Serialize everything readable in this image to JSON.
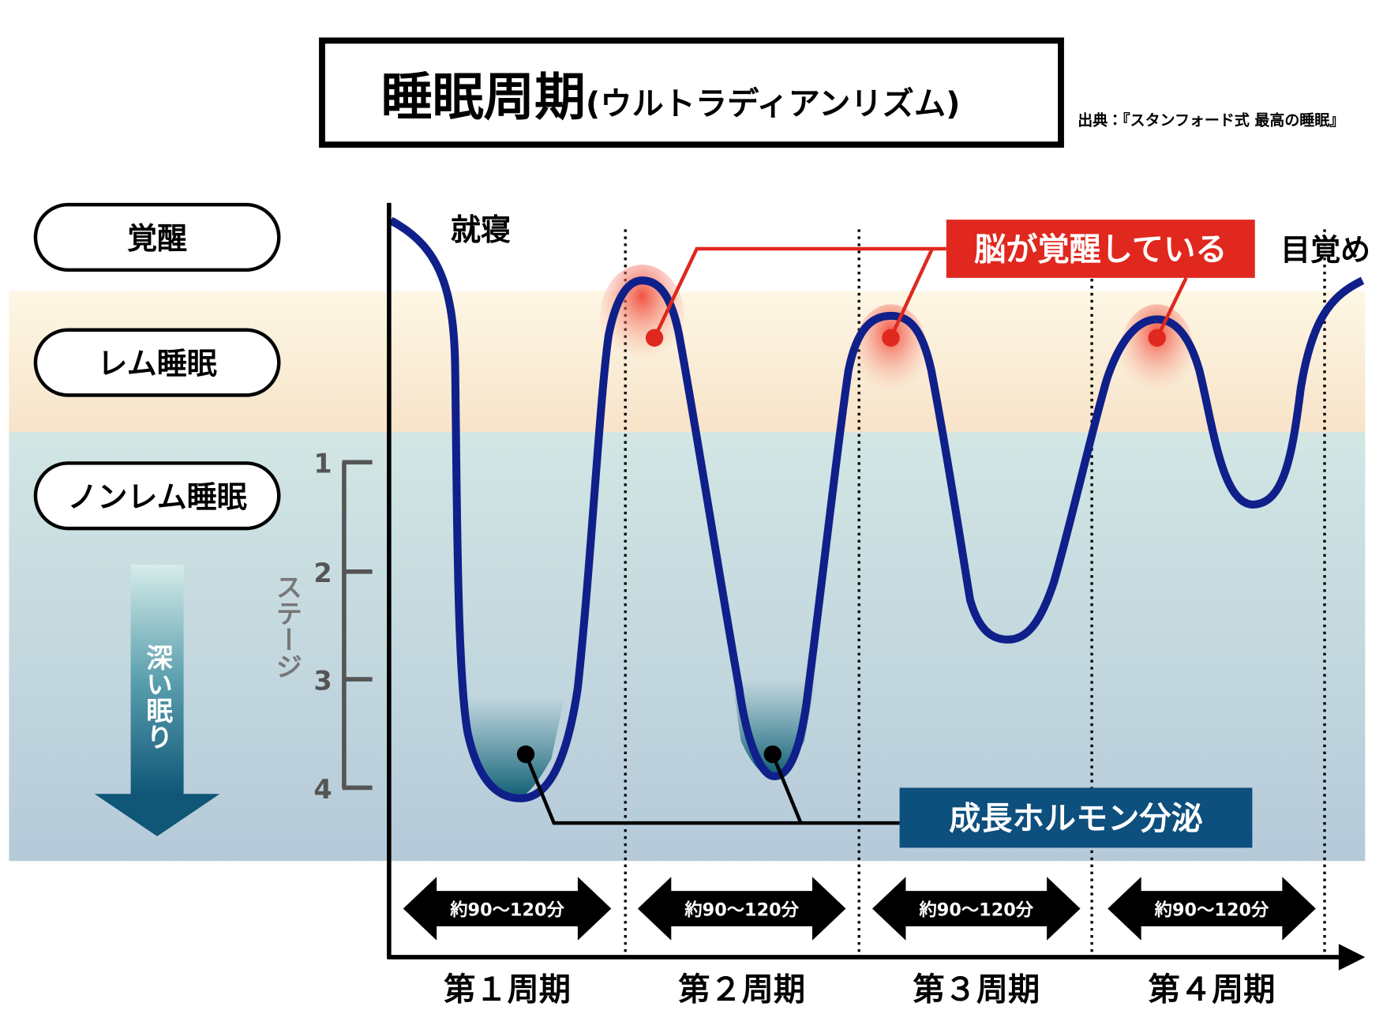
{
  "header": {
    "title": "睡眠周期",
    "subtitle": "(ウルトラディアンリズム)",
    "source": "出典：『スタンフォード式 最高の睡眠』"
  },
  "states": [
    "覚醒",
    "レム睡眠",
    "ノンレム睡眠"
  ],
  "depth_arrow": "深い眠り",
  "stage_axis": {
    "label": "ステージ",
    "ticks": [
      "1",
      "2",
      "3",
      "4"
    ]
  },
  "annotations": {
    "bedtime": "就寝",
    "wake": "目覚め",
    "brain_awake": "脳が覚醒している",
    "growth_hormone": "成長ホルモン分泌"
  },
  "cycles": [
    {
      "label": "第１周期",
      "duration": "約90〜120分"
    },
    {
      "label": "第２周期",
      "duration": "約90〜120分"
    },
    {
      "label": "第３周期",
      "duration": "約90〜120分"
    },
    {
      "label": "第４周期",
      "duration": "約90〜120分"
    }
  ]
}
